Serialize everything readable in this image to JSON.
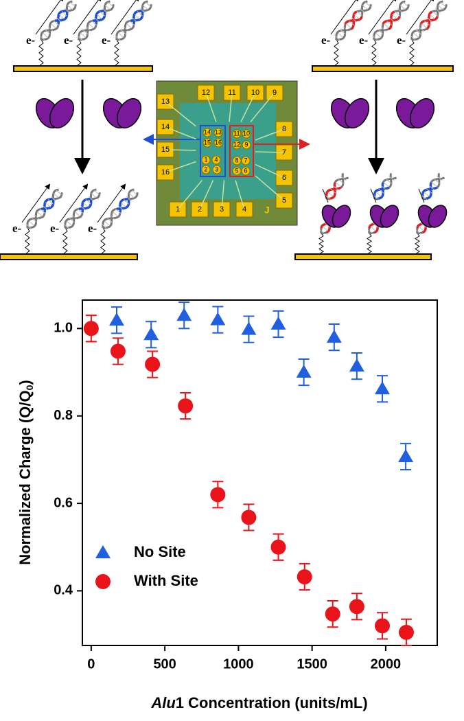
{
  "diagram": {
    "electron_labels": [
      "e-",
      "e-",
      "e-",
      "e-",
      "e-",
      "e-",
      "e-",
      "e-",
      "e-"
    ],
    "chip_pads": [
      "12",
      "11",
      "10",
      "9",
      "13",
      "14",
      "15",
      "16",
      "8",
      "7",
      "6",
      "5",
      "1",
      "2",
      "3",
      "4"
    ],
    "chip_electrodes": [
      "14",
      "13",
      "15",
      "16",
      "1",
      "4",
      "2",
      "3",
      "11",
      "10",
      "12",
      "9",
      "8",
      "7",
      "5",
      "6"
    ],
    "chip_mark": "J"
  },
  "chart_data": {
    "type": "scatter",
    "y_label": "Normalized Charge (Q/Q",
    "y_label_sub": "0",
    "y_label_end": ")",
    "x_label_italic": "Alu",
    "x_label": "1 Concentration (units/mL)",
    "xlim": [
      -60,
      2350
    ],
    "ylim": [
      0.275,
      1.065
    ],
    "xticks": [
      0,
      500,
      1000,
      1500,
      2000
    ],
    "yticks": [
      0.4,
      0.6,
      0.8,
      {
        "value": 1.0,
        "label": "1.0"
      }
    ],
    "legend": "lower left",
    "series": [
      {
        "name": "No Site",
        "color": "#1f5fe0",
        "marker": "triangle",
        "x": [
          173,
          407,
          631,
          860,
          1070,
          1271,
          1444,
          1650,
          1804,
          1977,
          2136
        ],
        "values": [
          1.019,
          0.986,
          1.03,
          1.02,
          0.998,
          1.01,
          0.9,
          0.98,
          0.914,
          0.862,
          0.707
        ],
        "errors": [
          0.03,
          0.03,
          0.03,
          0.03,
          0.03,
          0.03,
          0.03,
          0.03,
          0.03,
          0.03,
          0.03
        ]
      },
      {
        "name": "With Site",
        "color": "#e8141a",
        "marker": "circle",
        "x": [
          0,
          182,
          416,
          640,
          860,
          1070,
          1271,
          1449,
          1640,
          1804,
          1977,
          2140
        ],
        "values": [
          1.0,
          0.948,
          0.918,
          0.823,
          0.62,
          0.568,
          0.5,
          0.432,
          0.347,
          0.364,
          0.32,
          0.305
        ],
        "errors": [
          0.03,
          0.03,
          0.03,
          0.03,
          0.03,
          0.03,
          0.03,
          0.03,
          0.03,
          0.03,
          0.03,
          0.03
        ]
      }
    ]
  }
}
